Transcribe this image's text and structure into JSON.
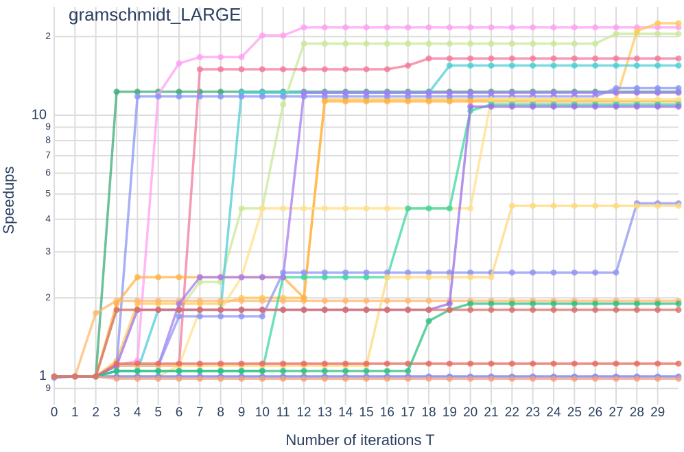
{
  "chart_data": {
    "type": "line",
    "title": "gramschmidt_LARGE",
    "x_label": "Number of iterations T",
    "y_label": "Speedups",
    "log_y": true,
    "grid": true,
    "x": [
      0,
      1,
      2,
      3,
      4,
      5,
      6,
      7,
      8,
      9,
      10,
      11,
      12,
      13,
      14,
      15,
      16,
      17,
      18,
      19,
      20,
      21,
      22,
      23,
      24,
      25,
      26,
      27,
      28,
      29,
      30
    ],
    "xlim": [
      0,
      30
    ],
    "xticks": [
      0,
      1,
      2,
      3,
      4,
      5,
      6,
      7,
      8,
      9,
      10,
      11,
      12,
      13,
      14,
      15,
      16,
      17,
      18,
      19,
      20,
      21,
      22,
      23,
      24,
      25,
      26,
      27,
      28,
      29
    ],
    "ylim": [
      0.78,
      26
    ],
    "yticks": [
      {
        "value": 0.9,
        "label": "9"
      },
      1,
      2,
      3,
      4,
      5,
      6,
      7,
      8,
      9,
      10,
      {
        "value": 20,
        "label": "2"
      }
    ],
    "series": [
      {
        "color": "#3cab78",
        "values": [
          1,
          1,
          1,
          12.3,
          12.3,
          12.3,
          12.3,
          12.3,
          12.3,
          12.3,
          12.3,
          12.3,
          12.3,
          12.3,
          12.3,
          12.3,
          12.3,
          12.3,
          12.3,
          12.3,
          12.3,
          12.3,
          12.3,
          12.3,
          12.3,
          12.3,
          12.3,
          12.3,
          12.3,
          12.3,
          12.3
        ]
      },
      {
        "color": "#ff9ff3",
        "values": [
          1,
          1,
          1,
          1.1,
          1.15,
          12,
          15.8,
          16.7,
          16.7,
          16.7,
          20.2,
          20.2,
          21.7,
          21.7,
          21.7,
          21.7,
          21.7,
          21.7,
          21.7,
          21.7,
          21.7,
          21.7,
          21.7,
          21.7,
          21.7,
          21.7,
          21.7,
          21.7,
          21.7,
          21.7,
          21.7
        ]
      },
      {
        "color": "#c9e89a",
        "values": [
          1,
          1,
          1,
          1.8,
          1.8,
          1.8,
          1.8,
          2.3,
          2.3,
          4.4,
          4.4,
          11,
          18.8,
          18.8,
          18.8,
          18.8,
          18.8,
          18.8,
          18.8,
          18.8,
          18.8,
          18.8,
          18.8,
          18.8,
          18.8,
          18.8,
          18.8,
          20.5,
          20.5,
          20.5,
          20.5
        ]
      },
      {
        "color": "#ffc857",
        "values": [
          1,
          1,
          1,
          1.15,
          1.9,
          1.9,
          1.9,
          1.9,
          1.9,
          2,
          2,
          2,
          2,
          11.5,
          11.5,
          11.5,
          11.5,
          11.5,
          11.5,
          11.5,
          11.5,
          11.5,
          11.5,
          11.5,
          11.5,
          11.5,
          11.5,
          11.5,
          21,
          22.5,
          22.5
        ]
      },
      {
        "color": "#f27a9a",
        "values": [
          1,
          1,
          1,
          1.1,
          1.1,
          1.1,
          1.1,
          15,
          15,
          15,
          15,
          15,
          15,
          15,
          15,
          15,
          15,
          15.5,
          16.5,
          16.5,
          16.5,
          16.5,
          16.5,
          16.5,
          16.5,
          16.5,
          16.5,
          16.5,
          16.5,
          16.5,
          16.5
        ]
      },
      {
        "color": "#4ecdd6",
        "values": [
          1,
          1,
          1,
          1.05,
          1.05,
          1.8,
          1.8,
          1.8,
          1.8,
          12.2,
          12.2,
          12.2,
          12.2,
          12.2,
          12.2,
          12.2,
          12.2,
          12.2,
          12.2,
          15.5,
          15.5,
          15.5,
          15.5,
          15.5,
          15.5,
          15.5,
          15.5,
          15.5,
          15.5,
          15.5,
          15.5
        ]
      },
      {
        "color": "#8a96f5",
        "values": [
          1,
          1,
          1,
          1.1,
          11.8,
          11.8,
          11.8,
          11.8,
          11.8,
          11.8,
          11.8,
          11.8,
          11.8,
          11.8,
          11.8,
          11.8,
          11.8,
          11.8,
          11.8,
          11.8,
          11.8,
          11.8,
          11.8,
          11.8,
          11.8,
          11.8,
          11.8,
          12.7,
          12.7,
          12.7,
          12.7
        ]
      },
      {
        "color": "#ffb870",
        "values": [
          1,
          1,
          1.75,
          1.95,
          1.95,
          1.95,
          1.95,
          1.95,
          1.95,
          1.95,
          1.95,
          1.95,
          1.95,
          1.95,
          1.95,
          1.95,
          1.95,
          1.95,
          1.95,
          1.95,
          1.95,
          1.95,
          1.95,
          1.95,
          1.95,
          1.95,
          1.95,
          1.95,
          1.95,
          1.95,
          1.95
        ]
      },
      {
        "color": "#ffb347",
        "values": [
          1,
          1,
          1,
          1.9,
          2.4,
          2.4,
          2.4,
          2.4,
          2.4,
          2.4,
          2.4,
          2.4,
          2,
          11.3,
          11.3,
          11.3,
          11.3,
          11.3,
          11.3,
          11.3,
          11.3,
          11.3,
          11.3,
          11.3,
          11.3,
          11.3,
          11.3,
          11.3,
          11.3,
          11.3,
          11.3
        ]
      },
      {
        "color": "#ffe08a",
        "values": [
          1,
          1,
          1,
          1,
          1,
          1,
          1.1,
          1.8,
          1.8,
          2.4,
          4.4,
          4.4,
          4.4,
          4.4,
          4.4,
          4.4,
          4.4,
          4.4,
          4.4,
          4.4,
          4.4,
          11.5,
          11.5,
          11.5,
          11.5,
          11.5,
          11.5,
          11.5,
          11.5,
          11.5,
          11.5
        ]
      },
      {
        "color": "#3dd6a3",
        "values": [
          1,
          1,
          1,
          1.05,
          1.05,
          1.05,
          1.05,
          1.05,
          1.05,
          1.05,
          1.05,
          2.4,
          2.4,
          2.4,
          2.4,
          2.4,
          2.4,
          4.4,
          4.4,
          4.4,
          10.4,
          11,
          11,
          11,
          11,
          11,
          11,
          11,
          11,
          11,
          11
        ]
      },
      {
        "color": "#a77cf0",
        "values": [
          1,
          1,
          1,
          1.1,
          1.1,
          1.1,
          1.9,
          2.4,
          2.4,
          2.4,
          2.4,
          2.4,
          12.2,
          12.2,
          12.2,
          12.2,
          12.2,
          12.2,
          12.2,
          12.2,
          12.2,
          12.2,
          12.2,
          12.2,
          12.2,
          12.2,
          12.2,
          12.2,
          12.2,
          12.2,
          12.2
        ]
      },
      {
        "color": "#8f95f3",
        "values": [
          1,
          1,
          1,
          1.1,
          1.1,
          1.1,
          1.7,
          1.7,
          1.7,
          1.7,
          1.7,
          2.5,
          2.5,
          2.5,
          2.5,
          2.5,
          2.5,
          2.5,
          2.5,
          2.5,
          2.5,
          2.5,
          2.5,
          2.5,
          2.5,
          2.5,
          2.5,
          2.5,
          4.6,
          4.6,
          4.6
        ]
      },
      {
        "color": "#ffd97a",
        "values": [
          1,
          1,
          1,
          1.1,
          1.1,
          1.1,
          1.1,
          1.1,
          1.1,
          1.1,
          1.1,
          1.1,
          1.1,
          1.1,
          1.1,
          1.1,
          2.4,
          2.4,
          2.4,
          2.4,
          2.4,
          2.4,
          4.5,
          4.5,
          4.5,
          4.5,
          4.5,
          4.5,
          4.5,
          4.5,
          4.5
        ]
      },
      {
        "color": "#9b6ee8",
        "values": [
          1,
          1,
          1,
          1.1,
          1.8,
          1.8,
          1.8,
          1.8,
          1.8,
          1.8,
          1.8,
          1.8,
          1.8,
          1.8,
          1.8,
          1.8,
          1.8,
          1.8,
          1.8,
          1.9,
          10.8,
          10.8,
          10.8,
          10.8,
          10.8,
          10.8,
          10.8,
          10.8,
          10.8,
          10.8,
          10.8
        ]
      },
      {
        "color": "#e86a5f",
        "values": [
          1,
          1,
          1,
          1.12,
          1.12,
          1.12,
          1.12,
          1.12,
          1.12,
          1.12,
          1.12,
          1.12,
          1.12,
          1.12,
          1.12,
          1.12,
          1.12,
          1.12,
          1.12,
          1.12,
          1.12,
          1.12,
          1.12,
          1.12,
          1.12,
          1.12,
          1.12,
          1.12,
          1.12,
          1.12,
          1.12
        ]
      },
      {
        "color": "#8088f2",
        "values": [
          0.99,
          1,
          1,
          1,
          1,
          1,
          1,
          1,
          1,
          1,
          1,
          1,
          1,
          1,
          1,
          1,
          1,
          1,
          1,
          1,
          1,
          1,
          1,
          1,
          1,
          1,
          1,
          1,
          1,
          1,
          1
        ]
      },
      {
        "color": "#2fbf80",
        "values": [
          1,
          1,
          1,
          1.05,
          1.05,
          1.05,
          1.05,
          1.05,
          1.05,
          1.05,
          1.05,
          1.05,
          1.05,
          1.05,
          1.05,
          1.05,
          1.05,
          1.05,
          1.63,
          1.8,
          1.9,
          1.9,
          1.9,
          1.9,
          1.9,
          1.9,
          1.9,
          1.9,
          1.9,
          1.9,
          1.9
        ]
      },
      {
        "color": "#f0a080",
        "values": [
          1,
          1,
          1,
          0.98,
          0.98,
          0.98,
          0.98,
          0.98,
          0.98,
          0.98,
          0.98,
          0.98,
          0.98,
          0.98,
          0.98,
          0.98,
          0.98,
          0.98,
          0.98,
          0.98,
          0.98,
          0.98,
          0.98,
          0.98,
          0.98,
          0.98,
          0.98,
          0.98,
          0.98,
          0.98,
          0.98
        ]
      },
      {
        "color": "#d9706a",
        "values": [
          1,
          1,
          1,
          1.8,
          1.8,
          1.8,
          1.8,
          1.8,
          1.8,
          1.8,
          1.8,
          1.8,
          1.8,
          1.8,
          1.8,
          1.8,
          1.8,
          1.8,
          1.8,
          1.8,
          1.8,
          1.8,
          1.8,
          1.8,
          1.8,
          1.8,
          1.8,
          1.8,
          1.8,
          1.8,
          1.8
        ]
      }
    ]
  }
}
